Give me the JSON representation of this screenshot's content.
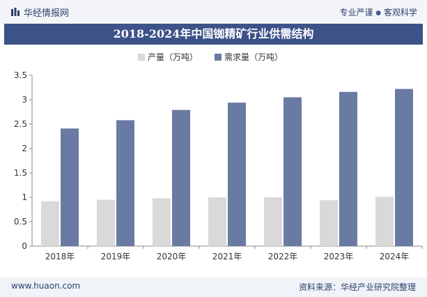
{
  "header": {
    "brand": "华经情报网",
    "slogan_left": "专业严谨",
    "slogan_sep": "●",
    "slogan_right": "客观科学",
    "logo_icon": "bar-logo-icon"
  },
  "colors": {
    "production": "#d9d9d9",
    "demand": "#6a7ba3",
    "title_bg": "#3c5288"
  },
  "footer": {
    "website": "www.huaon.com",
    "source": "资料来源：华经产业研究院整理"
  },
  "chart_data": {
    "type": "bar",
    "title": "2018-2024年中国铷精矿行业供需结构",
    "categories": [
      "2018年",
      "2019年",
      "2020年",
      "2021年",
      "2022年",
      "2023年",
      "2024年"
    ],
    "series": [
      {
        "name": "产量（万吨）",
        "values": [
          0.92,
          0.95,
          0.98,
          1.0,
          1.0,
          0.94,
          1.01
        ]
      },
      {
        "name": "需求量（万吨）",
        "values": [
          2.41,
          2.58,
          2.79,
          2.94,
          3.05,
          3.16,
          3.22
        ]
      }
    ],
    "yticks": [
      "0",
      "0.5",
      "1",
      "1.5",
      "2",
      "2.5",
      "3",
      "3.5"
    ],
    "ylim": [
      0,
      3.5
    ],
    "legend_position": "top-center",
    "grid": false
  }
}
